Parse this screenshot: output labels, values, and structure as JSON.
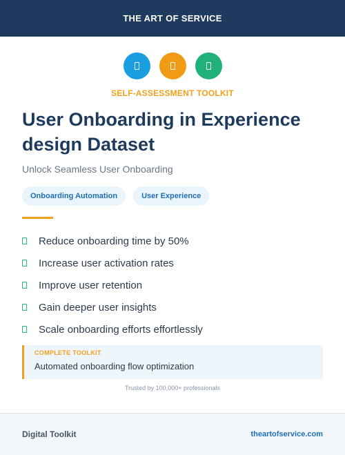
{
  "header": {
    "brand": "THE ART OF SERVICE"
  },
  "icons": [
    {
      "name": "document-icon",
      "color": "#1a9ee2"
    },
    {
      "name": "document-icon",
      "color": "#f19a14"
    },
    {
      "name": "document-icon",
      "color": "#20b07c"
    }
  ],
  "kicker": "SELF-ASSESSMENT TOOLKIT",
  "title": "User Onboarding in Experience design Dataset",
  "subtitle": "Unlock Seamless User Onboarding",
  "tags": [
    "Onboarding Automation",
    "User Experience"
  ],
  "benefits": [
    "Reduce onboarding time by 50%",
    "Increase user activation rates",
    "Improve user retention",
    "Gain deeper user insights",
    "Scale onboarding efforts effortlessly"
  ],
  "toolkit": {
    "label": "COMPLETE TOOLKIT",
    "text": "Automated onboarding flow optimization"
  },
  "trusted": "Trusted by 100,000+ professionals",
  "footer": {
    "left": "Digital Toolkit",
    "right": "theartofservice.com"
  }
}
